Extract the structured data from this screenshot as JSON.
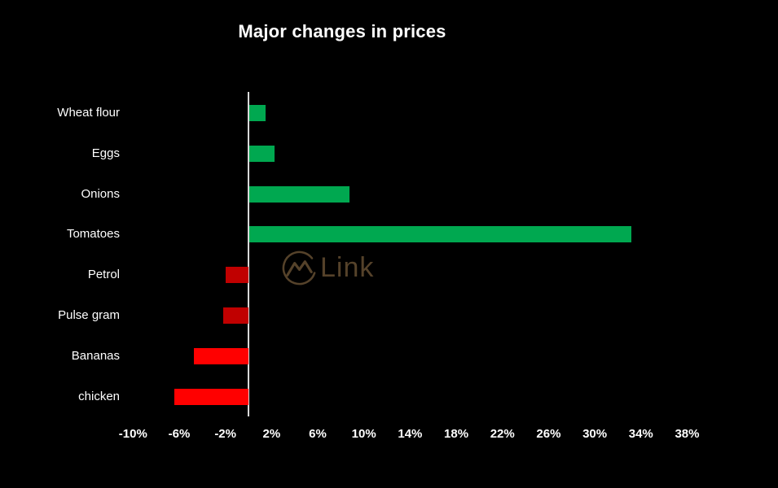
{
  "title": "Major changes in prices",
  "watermark": {
    "icon": "mountain-circle-logo",
    "text": "Link",
    "color": "#5d482e"
  },
  "chart_data": {
    "type": "bar",
    "orientation": "horizontal",
    "title": "Major changes in prices",
    "categories": [
      "Wheat flour",
      "Eggs",
      "Onions",
      "Tomatoes",
      "Petrol",
      "Pulse gram",
      "Bananas",
      "chicken"
    ],
    "values": [
      1.4,
      2.2,
      8.7,
      33.1,
      -2.0,
      -2.2,
      -4.7,
      -6.4
    ],
    "unit": "%",
    "bar_colors": [
      "#00a850",
      "#00a850",
      "#00a850",
      "#00a850",
      "#c00000",
      "#c00000",
      "#ff0000",
      "#ff0000"
    ],
    "positive_color": "#00a850",
    "negative_color_dark": "#c00000",
    "negative_color_bright": "#ff0000",
    "x_ticks": [
      -10,
      -6,
      -2,
      2,
      6,
      10,
      14,
      18,
      22,
      26,
      30,
      34,
      38
    ],
    "x_tick_labels": [
      "-10%",
      "-6%",
      "-2%",
      "2%",
      "6%",
      "10%",
      "14%",
      "18%",
      "22%",
      "26%",
      "30%",
      "34%",
      "38%"
    ],
    "xlim": [
      -12,
      40
    ],
    "grid": false,
    "legend": "none",
    "background": "#000000",
    "text_color": "#ffffff",
    "axis_line_color": "#d9d9d9"
  }
}
